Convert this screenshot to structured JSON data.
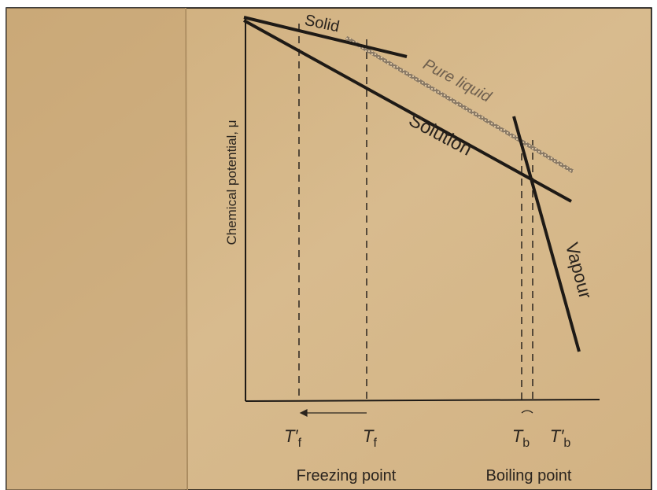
{
  "diagram": {
    "axis_label": "Chemical potential, μ",
    "curves": [
      "Solid",
      "Pure liquid",
      "Solution",
      "Vapour"
    ],
    "temperatures": [
      {
        "symbol": "T′",
        "subscript": "f"
      },
      {
        "symbol": "T",
        "subscript": "f"
      },
      {
        "symbol": "T",
        "subscript": "b"
      },
      {
        "symbol": "T′",
        "subscript": "b"
      }
    ],
    "captions": [
      "Freezing point",
      "Boiling point"
    ]
  }
}
